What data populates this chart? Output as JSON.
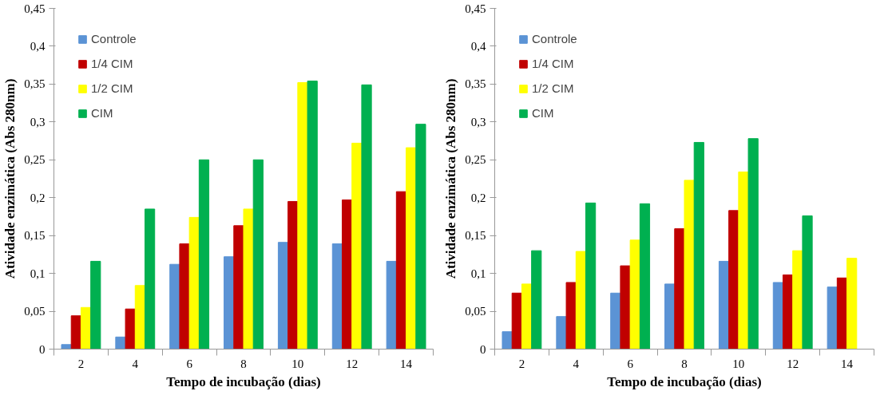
{
  "chart_data": [
    {
      "type": "bar",
      "xlabel": "Tempo de incubação (dias)",
      "ylabel": "Atividade enzimática (Abs 280nm)",
      "categories": [
        "2",
        "4",
        "6",
        "8",
        "10",
        "12",
        "14"
      ],
      "ylim": [
        0,
        0.45
      ],
      "yticks": [
        0,
        {
          "value": 0.05,
          "label": "0,05"
        },
        {
          "value": 0.1,
          "label": "0,1"
        },
        {
          "value": 0.15,
          "label": "0,15"
        },
        {
          "value": 0.2,
          "label": "0,2"
        },
        {
          "value": 0.25,
          "label": "0,25"
        },
        {
          "value": 0.3,
          "label": "0,3"
        },
        {
          "value": 0.35,
          "label": "0,35"
        },
        {
          "value": 0.4,
          "label": "0,4"
        },
        {
          "value": 0.45,
          "label": "0,45"
        }
      ],
      "grid": false,
      "legend": "top left",
      "series": [
        {
          "name": "Controle",
          "color": "#5b93d5",
          "values": [
            0.006,
            0.016,
            0.112,
            0.122,
            0.141,
            0.139,
            0.116
          ]
        },
        {
          "name": "1/4 CIM",
          "color": "#c00000",
          "values": [
            0.044,
            0.053,
            0.139,
            0.163,
            0.195,
            0.197,
            0.208
          ]
        },
        {
          "name": "1/2 CIM",
          "color": "#ffff00",
          "values": [
            0.055,
            0.084,
            0.174,
            0.185,
            0.352,
            0.272,
            0.266
          ]
        },
        {
          "name": "CIM",
          "color": "#00b050",
          "values": [
            0.116,
            0.185,
            0.25,
            0.25,
            0.354,
            0.349,
            0.297
          ]
        }
      ]
    },
    {
      "type": "bar",
      "xlabel": "Tempo de incubação (dias)",
      "ylabel": "Atividade enzimática (Abs 280nm)",
      "categories": [
        "2",
        "4",
        "6",
        "8",
        "10",
        "12",
        "14"
      ],
      "ylim": [
        0,
        0.45
      ],
      "yticks": [
        0,
        {
          "value": 0.05,
          "label": "0,05"
        },
        {
          "value": 0.1,
          "label": "0,1"
        },
        {
          "value": 0.15,
          "label": "0,15"
        },
        {
          "value": 0.2,
          "label": "0,2"
        },
        {
          "value": 0.25,
          "label": "0,25"
        },
        {
          "value": 0.3,
          "label": "0,3"
        },
        {
          "value": 0.35,
          "label": "0,35"
        },
        {
          "value": 0.4,
          "label": "0,4"
        },
        {
          "value": 0.45,
          "label": "0,45"
        }
      ],
      "grid": false,
      "legend": "top left",
      "series": [
        {
          "name": "Controle",
          "color": "#5b93d5",
          "values": [
            0.023,
            0.043,
            0.074,
            0.086,
            0.116,
            0.088,
            0.082
          ]
        },
        {
          "name": "1/4 CIM",
          "color": "#c00000",
          "values": [
            0.074,
            0.088,
            0.11,
            0.159,
            0.183,
            0.098,
            0.094
          ]
        },
        {
          "name": "1/2 CIM",
          "color": "#ffff00",
          "values": [
            0.086,
            0.129,
            0.144,
            0.223,
            0.234,
            0.13,
            0.12
          ]
        },
        {
          "name": "CIM",
          "color": "#00b050",
          "values": [
            0.13,
            0.193,
            0.192,
            0.273,
            0.278,
            0.176,
            null
          ]
        }
      ]
    }
  ]
}
